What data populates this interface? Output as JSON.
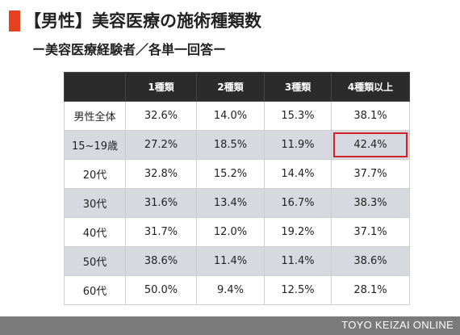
{
  "title": "【男性】美容医療の施術種類数",
  "subtitle": "ー美容医療経験者／各単一回答ー",
  "colors": {
    "accent": "#e6411f",
    "header_bg": "#2b2b2b",
    "stripe": "#d6d9e0",
    "highlight_border": "#d2232a",
    "footer_bg": "#7a7a7a"
  },
  "table": {
    "corner": "",
    "columns": [
      "1種類",
      "2種類",
      "3種類",
      "4種類以上"
    ],
    "rows": [
      {
        "label": "男性全体",
        "values": [
          "32.6%",
          "14.0%",
          "15.3%",
          "38.1%"
        ]
      },
      {
        "label": "15~19歳",
        "values": [
          "27.2%",
          "18.5%",
          "11.9%",
          "42.4%"
        ]
      },
      {
        "label": "20代",
        "values": [
          "32.8%",
          "15.2%",
          "14.4%",
          "37.7%"
        ]
      },
      {
        "label": "30代",
        "values": [
          "31.6%",
          "13.4%",
          "16.7%",
          "38.3%"
        ]
      },
      {
        "label": "40代",
        "values": [
          "31.7%",
          "12.0%",
          "19.2%",
          "37.1%"
        ]
      },
      {
        "label": "50代",
        "values": [
          "38.6%",
          "11.4%",
          "11.4%",
          "38.6%"
        ]
      },
      {
        "label": "60代",
        "values": [
          "50.0%",
          "9.4%",
          "12.5%",
          "28.1%"
        ]
      }
    ]
  },
  "footer": {
    "brand": "TOYO KEIZAI ONLINE"
  }
}
